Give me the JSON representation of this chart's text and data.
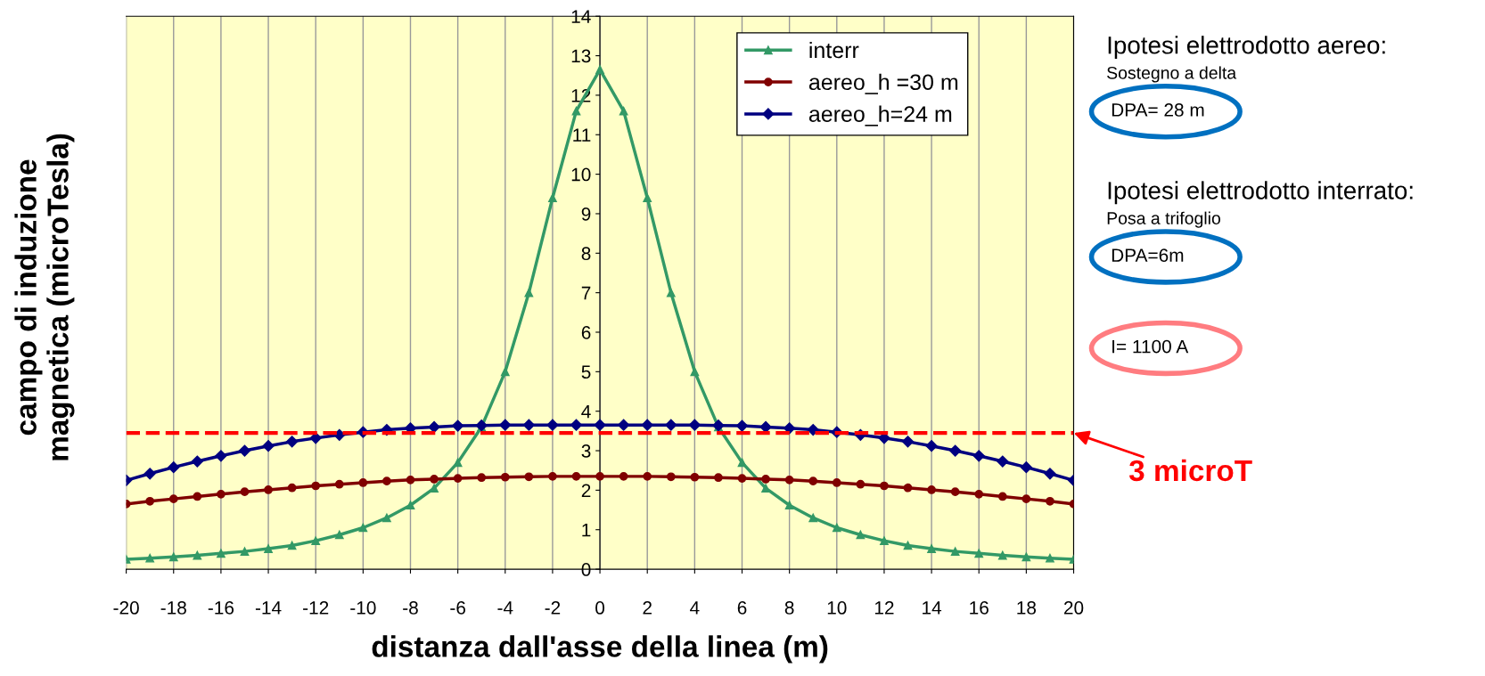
{
  "chart_data": {
    "type": "line",
    "xlabel": "distanza dall'asse della linea (m)",
    "ylabel": "campo di induzione\nmagnetica (microTesla)",
    "x": [
      -20,
      -19,
      -18,
      -17,
      -16,
      -15,
      -14,
      -13,
      -12,
      -11,
      -10,
      -9,
      -8,
      -7,
      -6,
      -5,
      -4,
      -3,
      -2,
      -1,
      0,
      1,
      2,
      3,
      4,
      5,
      6,
      7,
      8,
      9,
      10,
      11,
      12,
      13,
      14,
      15,
      16,
      17,
      18,
      19,
      20
    ],
    "series": [
      {
        "name": "interr",
        "color": "#339966",
        "marker": "triangle",
        "values": [
          0.25,
          0.28,
          0.31,
          0.35,
          0.4,
          0.45,
          0.52,
          0.6,
          0.72,
          0.87,
          1.05,
          1.3,
          1.62,
          2.05,
          2.7,
          3.6,
          5.0,
          7.0,
          9.4,
          11.6,
          12.65,
          11.6,
          9.4,
          7.0,
          5.0,
          3.6,
          2.7,
          2.05,
          1.62,
          1.3,
          1.05,
          0.87,
          0.72,
          0.6,
          0.52,
          0.45,
          0.4,
          0.35,
          0.31,
          0.28,
          0.25
        ]
      },
      {
        "name": "aereo_h =30 m",
        "color": "#800000",
        "marker": "circle",
        "values": [
          1.65,
          1.72,
          1.78,
          1.84,
          1.9,
          1.96,
          2.01,
          2.06,
          2.11,
          2.15,
          2.19,
          2.23,
          2.26,
          2.28,
          2.3,
          2.32,
          2.33,
          2.34,
          2.35,
          2.35,
          2.35,
          2.35,
          2.35,
          2.34,
          2.33,
          2.32,
          2.3,
          2.28,
          2.26,
          2.23,
          2.19,
          2.15,
          2.11,
          2.06,
          2.01,
          1.96,
          1.9,
          1.84,
          1.78,
          1.72,
          1.65
        ]
      },
      {
        "name": "aereo_h=24 m",
        "color": "#000080",
        "marker": "diamond",
        "values": [
          2.25,
          2.42,
          2.58,
          2.73,
          2.87,
          3.0,
          3.12,
          3.23,
          3.32,
          3.4,
          3.47,
          3.53,
          3.57,
          3.6,
          3.63,
          3.64,
          3.65,
          3.65,
          3.65,
          3.65,
          3.65,
          3.65,
          3.65,
          3.65,
          3.65,
          3.64,
          3.63,
          3.6,
          3.57,
          3.53,
          3.47,
          3.4,
          3.32,
          3.23,
          3.12,
          3.0,
          2.87,
          2.73,
          2.58,
          2.42,
          2.25
        ]
      }
    ],
    "xlim": [
      -20,
      20
    ],
    "ylim": [
      0,
      14
    ],
    "xticks": [
      -20,
      -18,
      -16,
      -14,
      -12,
      -10,
      -8,
      -6,
      -4,
      -2,
      0,
      2,
      4,
      6,
      8,
      10,
      12,
      14,
      16,
      18,
      20
    ],
    "yticks": [
      0,
      1,
      2,
      3,
      4,
      5,
      6,
      7,
      8,
      9,
      10,
      11,
      12,
      13,
      14
    ],
    "ref_lines": [
      {
        "axis": "y",
        "value": 3.45,
        "label": "3 microT",
        "color": "#ff0000",
        "line_style": "dashed"
      }
    ],
    "annotations": [
      "Ipotesi elettrodotto aereo:",
      "Sostegno a delta",
      "DPA= 28 m",
      "Ipotesi elettrodotto interrato:",
      "Posa a trifoglio",
      "DPA=6m",
      "I= 1100 A"
    ],
    "grid": "x",
    "legend": "top right"
  }
}
